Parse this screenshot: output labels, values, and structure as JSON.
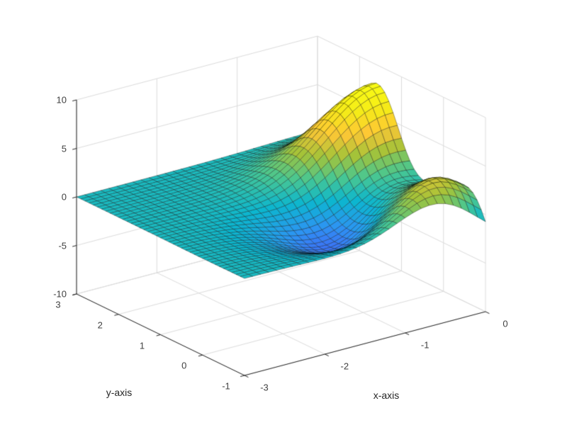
{
  "figure": {
    "background": "#ffffff"
  },
  "chart_data": {
    "type": "surface",
    "title": "",
    "xlabel": "x-axis",
    "ylabel": "y-axis",
    "zlabel": "",
    "xlim": [
      -3,
      0
    ],
    "ylim": [
      -1,
      3
    ],
    "zlim": [
      -10,
      10
    ],
    "x_ticks": [
      -3,
      -2,
      -1,
      0
    ],
    "y_ticks": [
      -1,
      0,
      1,
      2,
      3
    ],
    "z_ticks": [
      -10,
      -5,
      0,
      5,
      10
    ],
    "grid": true,
    "box": false,
    "function": "z = peaks(x,y) = 3*(1-x)^2*exp(-x^2-(y+1)^2) - 10*(x/5 - x^3 - y^5)*exp(-x^2-y^2) - (1/3)*exp(-(x+1)^2-y^2)",
    "grid_step": 0.1,
    "surface_extrema": {
      "max_z": 8.1,
      "max_at": [
        0,
        1.6
      ],
      "local_max_z": 3.78,
      "local_max_at": [
        -0.46,
        -0.63
      ],
      "min_z": -3.05,
      "min_at": [
        -1.35,
        0.2
      ],
      "flat_region_z": 0
    },
    "view": {
      "azimuth": -37.5,
      "elevation": 30
    },
    "colormap": {
      "name": "parula",
      "stops": [
        [
          0.0,
          "#3E26A8"
        ],
        [
          0.125,
          "#475BF9"
        ],
        [
          0.25,
          "#2C95F2"
        ],
        [
          0.375,
          "#0CB6CF"
        ],
        [
          0.5,
          "#4AC790"
        ],
        [
          0.625,
          "#A5C338"
        ],
        [
          0.75,
          "#FEC735"
        ],
        [
          0.875,
          "#F5EB18"
        ],
        [
          1.0,
          "#F9FB14"
        ]
      ]
    },
    "clim": [
      -5.5,
      8.1
    ],
    "mesh_color": "#000000",
    "grid_color": "#DCDCDC",
    "axis_color": "#262626",
    "tick_label_color": "#404040"
  }
}
